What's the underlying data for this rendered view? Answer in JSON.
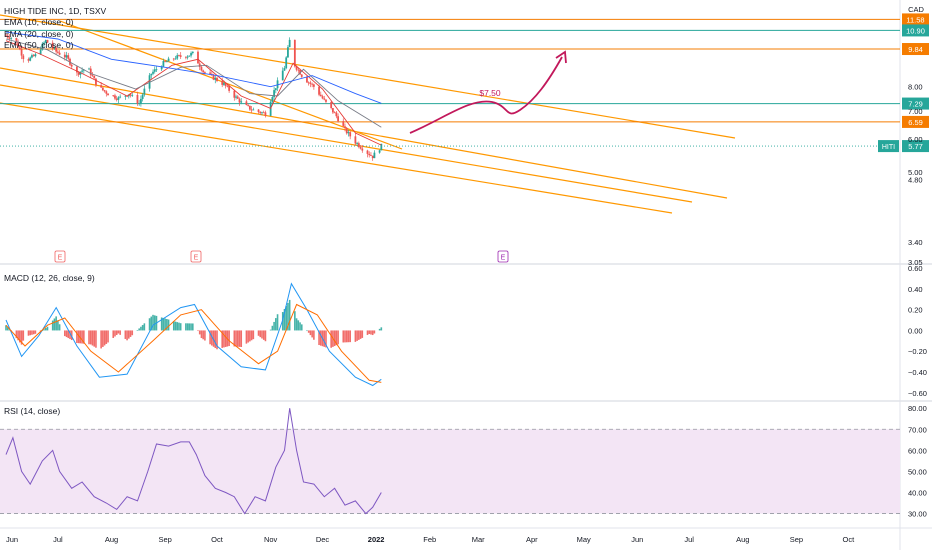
{
  "header": {
    "title": "HIGH TIDE INC, 1D, TSXV",
    "currency": "CAD",
    "indicators": [
      "EMA (10, close, 0)",
      "EMA (20, close, 0)",
      "EMA (50, close, 0)"
    ]
  },
  "colors": {
    "up": "#26a69a",
    "down": "#ef5350",
    "ema10": "#e53935",
    "ema20": "#787b86",
    "ema50": "#2962ff",
    "trendline": "#ff9800",
    "hline_orange": "#f57c00",
    "hline_teal": "#26a69a",
    "arrow": "#c2185b",
    "macd": "#2196f3",
    "signal": "#ff6d00",
    "rsi": "#7e57c2",
    "rsi_band": "#f3e5f5",
    "earnings": "#f06262",
    "dividend": "#9c27b0"
  },
  "chart_data": [
    {
      "type": "candlestick",
      "title": "HIGH TIDE INC, 1D, TSXV",
      "ylabel": "CAD",
      "y_scale": "log",
      "ylim": [
        3.05,
        11.8
      ],
      "y_ticks": [
        "8.00",
        "7.00",
        "6.00",
        "5.00",
        "4.80",
        "3.40",
        "3.05"
      ],
      "x_ticks": [
        "Jun",
        "Jul",
        "Aug",
        "Sep",
        "Oct",
        "Nov",
        "Dec",
        "2022",
        "Feb",
        "Mar",
        "Apr",
        "May",
        "Jun",
        "Jul",
        "Aug",
        "Sep",
        "Oct"
      ],
      "last_price": {
        "label": "HITI",
        "value": "5.77"
      },
      "price_labels": [
        {
          "value": "11.58",
          "kind": "orange"
        },
        {
          "value": "10.90",
          "kind": "teal"
        },
        {
          "value": "9.84",
          "kind": "orange"
        },
        {
          "value": "7.29",
          "kind": "teal"
        },
        {
          "value": "6.59",
          "kind": "orange"
        }
      ],
      "annotation": "$7.50",
      "earnings_markers": [
        "E",
        "E",
        "E"
      ],
      "close_path": [
        [
          "2021-06-01",
          10.6
        ],
        [
          "2021-06-06",
          10.4
        ],
        [
          "2021-06-12",
          9.2
        ],
        [
          "2021-06-18",
          9.5
        ],
        [
          "2021-06-24",
          10.3
        ],
        [
          "2021-06-30",
          9.7
        ],
        [
          "2021-07-06",
          9.4
        ],
        [
          "2021-07-12",
          8.6
        ],
        [
          "2021-07-18",
          8.9
        ],
        [
          "2021-07-24",
          8.0
        ],
        [
          "2021-07-30",
          7.7
        ],
        [
          "2021-08-05",
          7.5
        ],
        [
          "2021-08-11",
          7.7
        ],
        [
          "2021-08-17",
          7.3
        ],
        [
          "2021-08-24",
          8.6
        ],
        [
          "2021-08-31",
          9.1
        ],
        [
          "2021-09-07",
          9.4
        ],
        [
          "2021-09-14",
          9.5
        ],
        [
          "2021-09-17",
          9.6
        ],
        [
          "2021-09-23",
          8.7
        ],
        [
          "2021-09-29",
          8.4
        ],
        [
          "2021-10-05",
          8.1
        ],
        [
          "2021-10-11",
          7.6
        ],
        [
          "2021-10-17",
          7.2
        ],
        [
          "2021-10-23",
          7.0
        ],
        [
          "2021-10-29",
          6.9
        ],
        [
          "2021-11-04",
          8.0
        ],
        [
          "2021-11-09",
          8.9
        ],
        [
          "2021-11-12",
          10.3
        ],
        [
          "2021-11-15",
          9.0
        ],
        [
          "2021-11-20",
          8.4
        ],
        [
          "2021-11-26",
          8.0
        ],
        [
          "2021-12-02",
          7.4
        ],
        [
          "2021-12-08",
          6.9
        ],
        [
          "2021-12-14",
          6.3
        ],
        [
          "2021-12-20",
          5.9
        ],
        [
          "2021-12-26",
          5.6
        ],
        [
          "2021-12-30",
          5.45
        ],
        [
          "2022-01-04",
          5.77
        ]
      ],
      "ema_series": [
        {
          "name": "EMA (10, close, 0)",
          "values": [
            [
              "2021-06-01",
              10.3
            ],
            [
              "2021-06-20",
              9.6
            ],
            [
              "2021-07-15",
              8.6
            ],
            [
              "2021-08-10",
              7.6
            ],
            [
              "2021-09-05",
              9.0
            ],
            [
              "2021-09-20",
              9.3
            ],
            [
              "2021-10-15",
              7.6
            ],
            [
              "2021-11-01",
              7.1
            ],
            [
              "2021-11-14",
              9.1
            ],
            [
              "2021-12-01",
              7.9
            ],
            [
              "2021-12-20",
              6.2
            ],
            [
              "2022-01-04",
              5.8
            ]
          ]
        },
        {
          "name": "EMA (20, close, 0)",
          "values": [
            [
              "2021-06-01",
              10.4
            ],
            [
              "2021-06-25",
              9.8
            ],
            [
              "2021-07-20",
              8.6
            ],
            [
              "2021-08-15",
              7.9
            ],
            [
              "2021-09-10",
              8.9
            ],
            [
              "2021-09-25",
              9.0
            ],
            [
              "2021-10-20",
              7.7
            ],
            [
              "2021-11-05",
              7.6
            ],
            [
              "2021-11-20",
              8.8
            ],
            [
              "2021-12-10",
              7.4
            ],
            [
              "2022-01-04",
              6.4
            ]
          ]
        },
        {
          "name": "EMA (50, close, 0)",
          "values": [
            [
              "2021-06-01",
              10.8
            ],
            [
              "2021-07-01",
              10.4
            ],
            [
              "2021-08-01",
              9.3
            ],
            [
              "2021-09-01",
              8.9
            ],
            [
              "2021-10-01",
              8.5
            ],
            [
              "2021-11-01",
              8.0
            ],
            [
              "2021-11-25",
              8.5
            ],
            [
              "2021-12-20",
              7.7
            ],
            [
              "2022-01-04",
              7.3
            ]
          ]
        }
      ]
    },
    {
      "type": "line",
      "title": "MACD (12, 26, close, 9)",
      "ylim": [
        -0.65,
        0.62
      ],
      "y_ticks": [
        "0.60",
        "0.40",
        "0.20",
        "0.00",
        "−0.20",
        "−0.40",
        "−0.60"
      ],
      "series": [
        {
          "name": "MACD",
          "values": [
            [
              "2021-06-01",
              0.1
            ],
            [
              "2021-06-10",
              -0.25
            ],
            [
              "2021-06-20",
              -0.05
            ],
            [
              "2021-06-30",
              0.22
            ],
            [
              "2021-07-12",
              -0.15
            ],
            [
              "2021-07-25",
              -0.45
            ],
            [
              "2021-08-10",
              -0.42
            ],
            [
              "2021-08-25",
              0.05
            ],
            [
              "2021-09-10",
              0.22
            ],
            [
              "2021-09-18",
              0.25
            ],
            [
              "2021-10-01",
              -0.15
            ],
            [
              "2021-10-15",
              -0.35
            ],
            [
              "2021-10-29",
              -0.38
            ],
            [
              "2021-11-08",
              0.1
            ],
            [
              "2021-11-13",
              0.45
            ],
            [
              "2021-11-22",
              0.2
            ],
            [
              "2021-12-05",
              -0.2
            ],
            [
              "2021-12-20",
              -0.45
            ],
            [
              "2021-12-30",
              -0.53
            ],
            [
              "2022-01-04",
              -0.47
            ]
          ]
        },
        {
          "name": "Signal",
          "values": [
            [
              "2021-06-01",
              0.05
            ],
            [
              "2021-06-12",
              -0.15
            ],
            [
              "2021-06-25",
              0.05
            ],
            [
              "2021-07-05",
              0.12
            ],
            [
              "2021-07-20",
              -0.2
            ],
            [
              "2021-08-05",
              -0.4
            ],
            [
              "2021-08-25",
              -0.1
            ],
            [
              "2021-09-10",
              0.15
            ],
            [
              "2021-09-22",
              0.2
            ],
            [
              "2021-10-08",
              -0.1
            ],
            [
              "2021-10-25",
              -0.32
            ],
            [
              "2021-11-05",
              -0.2
            ],
            [
              "2021-11-16",
              0.25
            ],
            [
              "2021-11-28",
              0.15
            ],
            [
              "2021-12-12",
              -0.2
            ],
            [
              "2021-12-28",
              -0.48
            ],
            [
              "2022-01-04",
              -0.5
            ]
          ]
        }
      ]
    },
    {
      "type": "line",
      "title": "RSI (14, close)",
      "ylim": [
        26,
        82
      ],
      "y_ticks": [
        "80.00",
        "70.00",
        "60.00",
        "50.00",
        "40.00",
        "30.00"
      ],
      "bands": [
        30,
        70
      ],
      "series": [
        {
          "name": "RSI",
          "values": [
            [
              "2021-06-01",
              58
            ],
            [
              "2021-06-05",
              66
            ],
            [
              "2021-06-10",
              50
            ],
            [
              "2021-06-15",
              44
            ],
            [
              "2021-06-22",
              55
            ],
            [
              "2021-06-28",
              60
            ],
            [
              "2021-07-02",
              50
            ],
            [
              "2021-07-09",
              42
            ],
            [
              "2021-07-15",
              45
            ],
            [
              "2021-07-22",
              38
            ],
            [
              "2021-07-29",
              35
            ],
            [
              "2021-08-04",
              32
            ],
            [
              "2021-08-10",
              38
            ],
            [
              "2021-08-16",
              36
            ],
            [
              "2021-08-22",
              50
            ],
            [
              "2021-08-27",
              63
            ],
            [
              "2021-09-03",
              62
            ],
            [
              "2021-09-10",
              64
            ],
            [
              "2021-09-15",
              64
            ],
            [
              "2021-09-19",
              58
            ],
            [
              "2021-09-24",
              48
            ],
            [
              "2021-09-30",
              42
            ],
            [
              "2021-10-06",
              40
            ],
            [
              "2021-10-11",
              38
            ],
            [
              "2021-10-17",
              30
            ],
            [
              "2021-10-23",
              38
            ],
            [
              "2021-10-29",
              36
            ],
            [
              "2021-11-04",
              52
            ],
            [
              "2021-11-09",
              60
            ],
            [
              "2021-11-12",
              80
            ],
            [
              "2021-11-16",
              60
            ],
            [
              "2021-11-20",
              45
            ],
            [
              "2021-11-26",
              44
            ],
            [
              "2021-12-02",
              38
            ],
            [
              "2021-12-08",
              42
            ],
            [
              "2021-12-14",
              34
            ],
            [
              "2021-12-20",
              36
            ],
            [
              "2021-12-26",
              30
            ],
            [
              "2021-12-30",
              33
            ],
            [
              "2022-01-04",
              40
            ]
          ]
        }
      ]
    }
  ]
}
